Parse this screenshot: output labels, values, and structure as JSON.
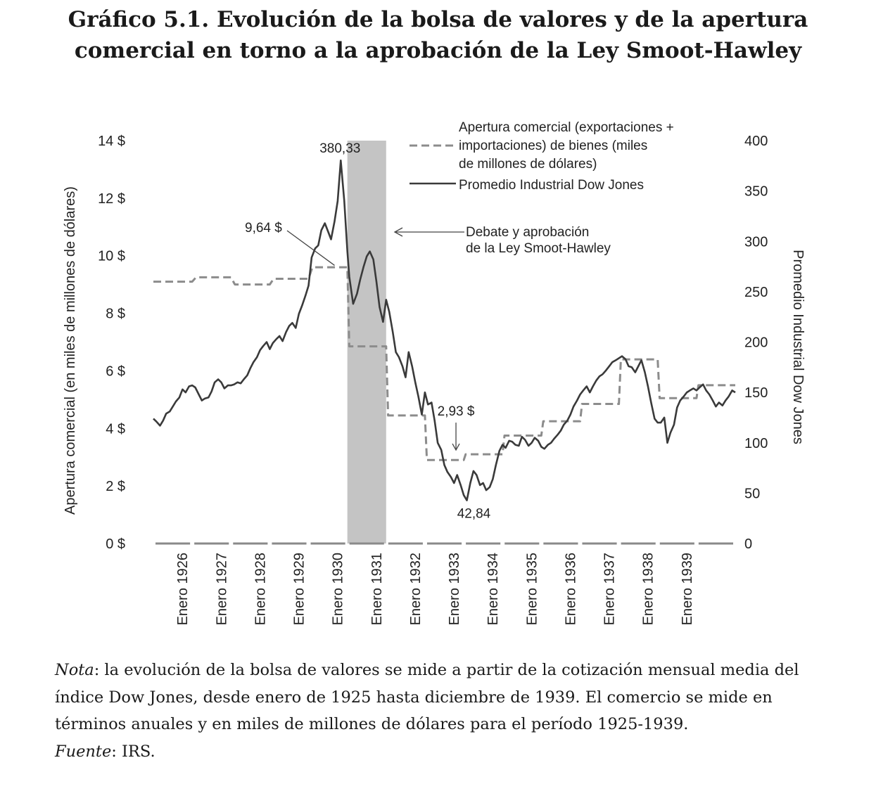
{
  "page": {
    "title_line1": "Gráfico 5.1. Evolución de la bolsa de valores y de la apertura",
    "title_line2": "comercial en torno a la aprobación de la Ley Smoot-Hawley",
    "note_label": "Nota",
    "note_text": ": la evolución de la bolsa de valores se mide a partir de la cotización mensual media del índice Dow Jones, desde enero de 1925 hasta diciembre de 1939. El comercio se mide en términos anuales y en miles de millones de dólares para el período 1925-1939.",
    "source_label": "Fuente",
    "source_text": ": IRS."
  },
  "chart_data": {
    "type": "line",
    "y_left": {
      "label": "Apertura comercial (en miles de millones de dólares)",
      "range": [
        0,
        14
      ],
      "ticks": [
        0,
        2,
        4,
        6,
        8,
        10,
        12,
        14
      ],
      "tick_labels": [
        "0 $",
        "2 $",
        "4 $",
        "6 $",
        "8 $",
        "10 $",
        "12 $",
        "14 $"
      ]
    },
    "y_right": {
      "label": "Promedio Industrial Dow Jones",
      "range": [
        0,
        400
      ],
      "ticks": [
        0,
        50,
        100,
        150,
        200,
        250,
        300,
        350,
        400
      ],
      "tick_labels": [
        "0",
        "50",
        "100",
        "150",
        "200",
        "250",
        "300",
        "350",
        "400"
      ]
    },
    "x_axis": {
      "range": [
        1925.0,
        1940.0
      ],
      "tick_labels": [
        "Enero 1926",
        "Enero 1927",
        "Enero 1928",
        "Enero 1929",
        "Enero 1930",
        "Enero 1931",
        "Enero 1932",
        "Enero 1933",
        "Enero 1934",
        "Enero 1935",
        "Enero 1936",
        "Enero 1937",
        "Enero 1938",
        "Enero 1939"
      ],
      "tick_positions": [
        1926,
        1927,
        1928,
        1929,
        1930,
        1931,
        1932,
        1933,
        1934,
        1935,
        1936,
        1937,
        1938,
        1939
      ]
    },
    "shaded_period": {
      "start": 1930.0,
      "end": 1931.0,
      "color": "#c4c4c4"
    },
    "series": [
      {
        "name": "Apertura comercial (exportaciones + importaciones) de bienes (miles de millones de dólares)",
        "legend_lines": [
          "Apertura comercial (exportaciones +",
          "importaciones) de bienes (miles",
          "de millones de dólares)"
        ],
        "axis": "left",
        "style": "dashed",
        "color": "#8c8c8c",
        "step_points": [
          [
            1925.0,
            9.1
          ],
          [
            1925.5,
            9.1
          ],
          [
            1926.0,
            9.1
          ],
          [
            1926.1,
            9.25
          ],
          [
            1927.0,
            9.25
          ],
          [
            1927.1,
            9.0
          ],
          [
            1928.0,
            9.0
          ],
          [
            1928.1,
            9.2
          ],
          [
            1929.0,
            9.2
          ],
          [
            1929.1,
            9.6
          ],
          [
            1930.0,
            9.6
          ],
          [
            1930.05,
            6.85
          ],
          [
            1931.0,
            6.85
          ],
          [
            1931.05,
            4.45
          ],
          [
            1932.0,
            4.45
          ],
          [
            1932.05,
            2.9
          ],
          [
            1933.0,
            2.9
          ],
          [
            1933.05,
            3.1
          ],
          [
            1934.0,
            3.1
          ],
          [
            1934.05,
            3.75
          ],
          [
            1935.0,
            3.75
          ],
          [
            1935.05,
            4.25
          ],
          [
            1936.0,
            4.25
          ],
          [
            1936.05,
            4.85
          ],
          [
            1937.0,
            4.85
          ],
          [
            1937.05,
            6.4
          ],
          [
            1938.0,
            6.4
          ],
          [
            1938.05,
            5.05
          ],
          [
            1939.0,
            5.05
          ],
          [
            1939.05,
            5.5
          ],
          [
            1940.0,
            5.5
          ]
        ]
      },
      {
        "name": "Promedio Industrial Dow Jones",
        "legend_lines": [
          "Promedio Industrial Dow Jones"
        ],
        "axis": "right",
        "style": "solid",
        "color": "#3a3a3a",
        "points": [
          [
            1925.0,
            124
          ],
          [
            1925.08,
            121
          ],
          [
            1925.17,
            117
          ],
          [
            1925.25,
            122
          ],
          [
            1925.33,
            129
          ],
          [
            1925.42,
            131
          ],
          [
            1925.5,
            136
          ],
          [
            1925.58,
            141
          ],
          [
            1925.67,
            145
          ],
          [
            1925.75,
            153
          ],
          [
            1925.83,
            150
          ],
          [
            1925.92,
            156
          ],
          [
            1926.0,
            157
          ],
          [
            1926.08,
            155
          ],
          [
            1926.17,
            148
          ],
          [
            1926.25,
            142
          ],
          [
            1926.33,
            144
          ],
          [
            1926.42,
            145
          ],
          [
            1926.5,
            151
          ],
          [
            1926.58,
            160
          ],
          [
            1926.67,
            163
          ],
          [
            1926.75,
            160
          ],
          [
            1926.83,
            154
          ],
          [
            1926.92,
            157
          ],
          [
            1927.0,
            157
          ],
          [
            1927.08,
            158
          ],
          [
            1927.17,
            160
          ],
          [
            1927.25,
            159
          ],
          [
            1927.33,
            163
          ],
          [
            1927.42,
            167
          ],
          [
            1927.5,
            174
          ],
          [
            1927.58,
            180
          ],
          [
            1927.67,
            185
          ],
          [
            1927.75,
            192
          ],
          [
            1927.83,
            196
          ],
          [
            1927.92,
            200
          ],
          [
            1928.0,
            193
          ],
          [
            1928.08,
            199
          ],
          [
            1928.17,
            203
          ],
          [
            1928.25,
            206
          ],
          [
            1928.33,
            201
          ],
          [
            1928.42,
            210
          ],
          [
            1928.5,
            216
          ],
          [
            1928.58,
            219
          ],
          [
            1928.67,
            214
          ],
          [
            1928.75,
            228
          ],
          [
            1928.83,
            236
          ],
          [
            1928.92,
            246
          ],
          [
            1929.0,
            256
          ],
          [
            1929.08,
            284
          ],
          [
            1929.17,
            293
          ],
          [
            1929.25,
            296
          ],
          [
            1929.33,
            311
          ],
          [
            1929.42,
            318
          ],
          [
            1929.5,
            310
          ],
          [
            1929.58,
            302
          ],
          [
            1929.67,
            320
          ],
          [
            1929.75,
            340
          ],
          [
            1929.83,
            380.33
          ],
          [
            1929.92,
            340
          ],
          [
            1930.0,
            290
          ],
          [
            1930.05,
            265
          ],
          [
            1930.15,
            238
          ],
          [
            1930.25,
            248
          ],
          [
            1930.33,
            262
          ],
          [
            1930.42,
            275
          ],
          [
            1930.5,
            285
          ],
          [
            1930.58,
            290
          ],
          [
            1930.67,
            282
          ],
          [
            1930.75,
            260
          ],
          [
            1930.83,
            235
          ],
          [
            1930.92,
            220
          ],
          [
            1931.0,
            242
          ],
          [
            1931.08,
            230
          ],
          [
            1931.17,
            210
          ],
          [
            1931.25,
            190
          ],
          [
            1931.33,
            185
          ],
          [
            1931.42,
            176
          ],
          [
            1931.5,
            165
          ],
          [
            1931.58,
            190
          ],
          [
            1931.67,
            176
          ],
          [
            1931.75,
            160
          ],
          [
            1931.83,
            146
          ],
          [
            1931.92,
            128
          ],
          [
            1932.0,
            150
          ],
          [
            1932.08,
            138
          ],
          [
            1932.17,
            140
          ],
          [
            1932.25,
            122
          ],
          [
            1932.33,
            100
          ],
          [
            1932.42,
            93
          ],
          [
            1932.5,
            78
          ],
          [
            1932.58,
            71
          ],
          [
            1932.67,
            66
          ],
          [
            1932.75,
            60
          ],
          [
            1932.83,
            68
          ],
          [
            1932.92,
            58
          ],
          [
            1933.0,
            48
          ],
          [
            1933.08,
            42.84
          ],
          [
            1933.17,
            60
          ],
          [
            1933.25,
            72
          ],
          [
            1933.33,
            68
          ],
          [
            1933.42,
            58
          ],
          [
            1933.5,
            60
          ],
          [
            1933.58,
            53
          ],
          [
            1933.67,
            56
          ],
          [
            1933.75,
            64
          ],
          [
            1933.83,
            78
          ],
          [
            1933.92,
            92
          ],
          [
            1934.0,
            98
          ],
          [
            1934.08,
            95
          ],
          [
            1934.17,
            102
          ],
          [
            1934.25,
            101
          ],
          [
            1934.33,
            98
          ],
          [
            1934.42,
            97
          ],
          [
            1934.5,
            106
          ],
          [
            1934.58,
            103
          ],
          [
            1934.67,
            97
          ],
          [
            1934.75,
            100
          ],
          [
            1934.83,
            105
          ],
          [
            1934.92,
            102
          ],
          [
            1935.0,
            96
          ],
          [
            1935.08,
            94
          ],
          [
            1935.17,
            98
          ],
          [
            1935.25,
            100
          ],
          [
            1935.33,
            104
          ],
          [
            1935.42,
            108
          ],
          [
            1935.5,
            112
          ],
          [
            1935.58,
            118
          ],
          [
            1935.67,
            122
          ],
          [
            1935.75,
            128
          ],
          [
            1935.83,
            136
          ],
          [
            1935.92,
            142
          ],
          [
            1936.0,
            148
          ],
          [
            1936.08,
            152
          ],
          [
            1936.17,
            156
          ],
          [
            1936.25,
            150
          ],
          [
            1936.33,
            156
          ],
          [
            1936.42,
            162
          ],
          [
            1936.5,
            166
          ],
          [
            1936.58,
            168
          ],
          [
            1936.67,
            172
          ],
          [
            1936.75,
            176
          ],
          [
            1936.83,
            180
          ],
          [
            1936.92,
            182
          ],
          [
            1937.0,
            184
          ],
          [
            1937.08,
            186
          ],
          [
            1937.17,
            183
          ],
          [
            1937.25,
            176
          ],
          [
            1937.33,
            175
          ],
          [
            1937.42,
            170
          ],
          [
            1937.5,
            176
          ],
          [
            1937.58,
            182
          ],
          [
            1937.67,
            170
          ],
          [
            1937.75,
            156
          ],
          [
            1937.83,
            140
          ],
          [
            1937.92,
            124
          ],
          [
            1938.0,
            120
          ],
          [
            1938.08,
            120
          ],
          [
            1938.17,
            125
          ],
          [
            1938.25,
            100
          ],
          [
            1938.33,
            110
          ],
          [
            1938.42,
            118
          ],
          [
            1938.5,
            135
          ],
          [
            1938.58,
            142
          ],
          [
            1938.67,
            146
          ],
          [
            1938.75,
            150
          ],
          [
            1938.83,
            152
          ],
          [
            1938.92,
            154
          ],
          [
            1939.0,
            152
          ],
          [
            1939.08,
            155
          ],
          [
            1939.17,
            158
          ],
          [
            1939.25,
            152
          ],
          [
            1939.33,
            148
          ],
          [
            1939.42,
            142
          ],
          [
            1939.5,
            136
          ],
          [
            1939.58,
            140
          ],
          [
            1939.67,
            137
          ],
          [
            1939.75,
            142
          ],
          [
            1939.83,
            146
          ],
          [
            1939.92,
            152
          ],
          [
            1940.0,
            150
          ]
        ]
      }
    ],
    "annotations": [
      {
        "text": "380,33",
        "x": 1929.83,
        "y": 380.33,
        "axis": "right"
      },
      {
        "text": "9,64 $",
        "x": 1929.67,
        "y": 9.64,
        "axis": "left"
      },
      {
        "text": "2,93 $",
        "x": 1932.8,
        "y": 2.93,
        "axis": "left"
      },
      {
        "text": "42,84",
        "x": 1933.08,
        "y": 42.84,
        "axis": "right"
      },
      {
        "text_lines": [
          "Debate y aprobación",
          "de la Ley Smoot-Hawley"
        ]
      }
    ]
  }
}
